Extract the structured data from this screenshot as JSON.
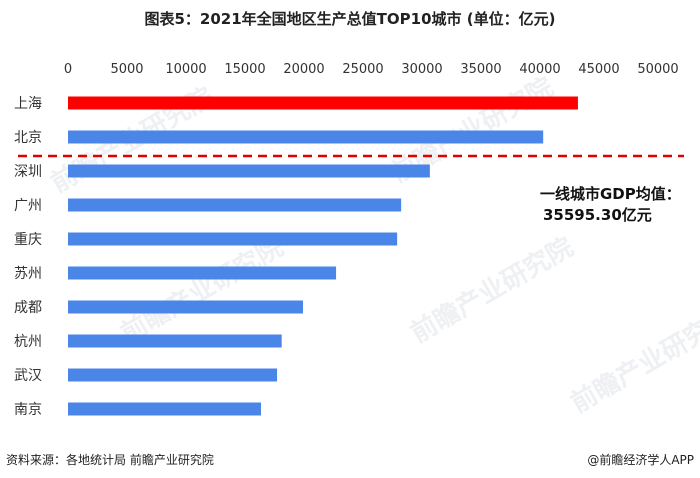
{
  "title": "图表5：2021年全国地区生产总值TOP10城市 (单位：亿元)",
  "annotation": {
    "line1": "一线城市GDP均值：",
    "line2": "35595.30亿元"
  },
  "footer": {
    "source": "资料来源：各地统计局 前瞻产业研究院",
    "brand": "@前瞻经济学人APP"
  },
  "watermark_text": "前瞻产业研究院",
  "colors": {
    "highlight": "#ff0000",
    "bar": "#4a86e8",
    "reference_line": "#e00000"
  },
  "chart_data": {
    "type": "bar",
    "orientation": "horizontal",
    "title": "图表5：2021年全国地区生产总值TOP10城市 (单位：亿元)",
    "categories": [
      "上海",
      "北京",
      "深圳",
      "广州",
      "重庆",
      "苏州",
      "成都",
      "杭州",
      "武汉",
      "南京"
    ],
    "values": [
      43215,
      40270,
      30665,
      28232,
      27894,
      22718,
      19917,
      18109,
      17717,
      16355
    ],
    "highlight_index": 0,
    "reference_line": {
      "value": 35595.3,
      "position": "between 北京 and 深圳",
      "style": "dashed"
    },
    "xlim": [
      0,
      50000
    ],
    "xticks": [
      0,
      5000,
      10000,
      15000,
      20000,
      25000,
      30000,
      35000,
      40000,
      45000,
      50000
    ],
    "xaxis_position": "top",
    "grid": false,
    "legend": "none"
  }
}
